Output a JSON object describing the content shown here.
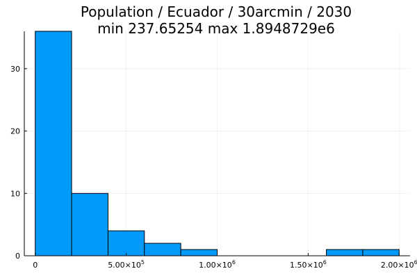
{
  "chart_data": {
    "type": "bar",
    "title": "Population / Ecuador / 30arcmin / 2030",
    "subtitle": "min 237.65254  max 1.8948729e6",
    "xlabel": "",
    "ylabel": "",
    "xlim": [
      -60000,
      2060000
    ],
    "ylim": [
      0,
      36
    ],
    "grid": true,
    "legend": "none",
    "bar_color": "#009AFA",
    "bins": [
      {
        "x0": 0,
        "x1": 200000,
        "value": 36
      },
      {
        "x0": 200000,
        "x1": 400000,
        "value": 10
      },
      {
        "x0": 400000,
        "x1": 600000,
        "value": 4
      },
      {
        "x0": 600000,
        "x1": 800000,
        "value": 2
      },
      {
        "x0": 800000,
        "x1": 1000000,
        "value": 1
      },
      {
        "x0": 1000000,
        "x1": 1200000,
        "value": 0
      },
      {
        "x0": 1200000,
        "x1": 1400000,
        "value": 0
      },
      {
        "x0": 1400000,
        "x1": 1600000,
        "value": 0
      },
      {
        "x0": 1600000,
        "x1": 1800000,
        "value": 1
      },
      {
        "x0": 1800000,
        "x1": 2000000,
        "value": 1
      }
    ],
    "x_ticks": [
      {
        "value": 0,
        "label": "0",
        "exp": ""
      },
      {
        "value": 500000,
        "label": "5.00×10",
        "exp": "5"
      },
      {
        "value": 1000000,
        "label": "1.00×10",
        "exp": "6"
      },
      {
        "value": 1500000,
        "label": "1.50×10",
        "exp": "6"
      },
      {
        "value": 2000000,
        "label": "2.00×10",
        "exp": "6"
      }
    ],
    "y_ticks": [
      {
        "value": 0,
        "label": "0"
      },
      {
        "value": 10,
        "label": "10"
      },
      {
        "value": 20,
        "label": "20"
      },
      {
        "value": 30,
        "label": "30"
      }
    ]
  }
}
